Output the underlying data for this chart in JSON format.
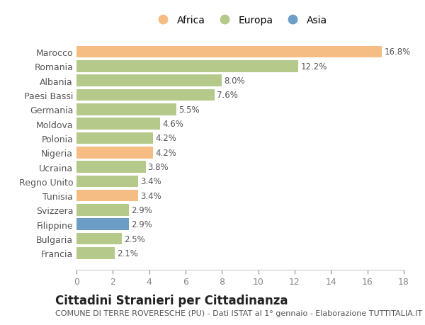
{
  "countries": [
    "Francia",
    "Bulgaria",
    "Filippine",
    "Svizzera",
    "Tunisia",
    "Regno Unito",
    "Ucraina",
    "Nigeria",
    "Polonia",
    "Moldova",
    "Germania",
    "Paesi Bassi",
    "Albania",
    "Romania",
    "Marocco"
  ],
  "values": [
    2.1,
    2.5,
    2.9,
    2.9,
    3.4,
    3.4,
    3.8,
    4.2,
    4.2,
    4.6,
    5.5,
    7.6,
    8.0,
    12.2,
    16.8
  ],
  "continents": [
    "Europa",
    "Europa",
    "Asia",
    "Europa",
    "Africa",
    "Europa",
    "Europa",
    "Africa",
    "Europa",
    "Europa",
    "Europa",
    "Europa",
    "Europa",
    "Europa",
    "Africa"
  ],
  "colors": {
    "Africa": "#f5bc84",
    "Europa": "#b5c98a",
    "Asia": "#6d9ec7"
  },
  "title": "Cittadini Stranieri per Cittadinanza",
  "subtitle": "COMUNE DI TERRE ROVERESCHE (PU) - Dati ISTAT al 1° gennaio - Elaborazione TUTTITALIA.IT",
  "xlim": [
    0,
    18
  ],
  "xticks": [
    0,
    2,
    4,
    6,
    8,
    10,
    12,
    14,
    16,
    18
  ],
  "bg_color": "#ffffff",
  "bar_height": 0.82,
  "title_fontsize": 12,
  "subtitle_fontsize": 8,
  "label_fontsize": 8.5,
  "tick_fontsize": 9,
  "legend_fontsize": 10
}
